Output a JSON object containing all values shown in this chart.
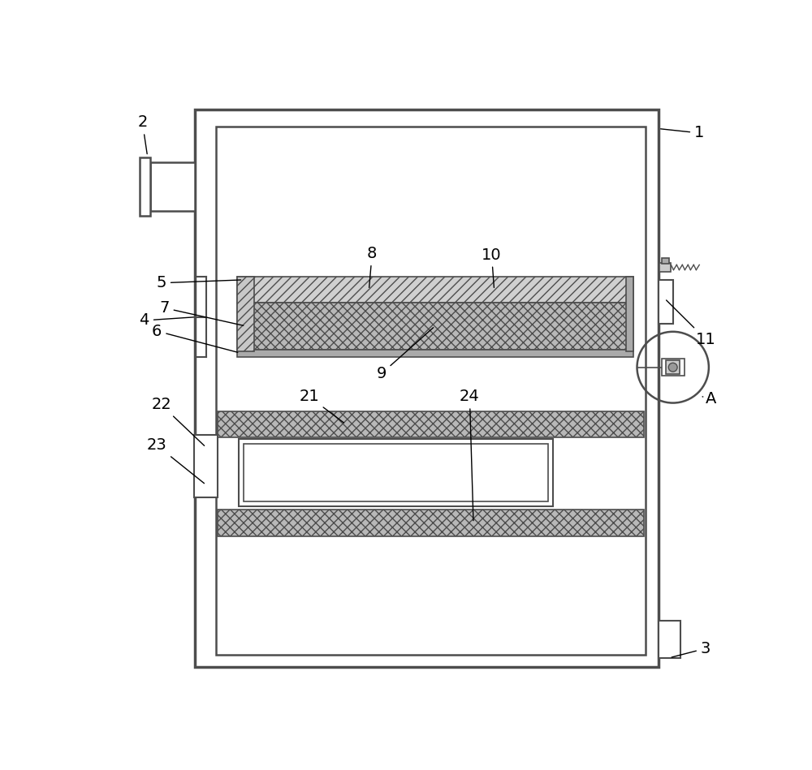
{
  "fig_width": 10.0,
  "fig_height": 9.49,
  "bg_color": "#ffffff",
  "lc": "#4d4d4d",
  "lc_light": "#888888"
}
